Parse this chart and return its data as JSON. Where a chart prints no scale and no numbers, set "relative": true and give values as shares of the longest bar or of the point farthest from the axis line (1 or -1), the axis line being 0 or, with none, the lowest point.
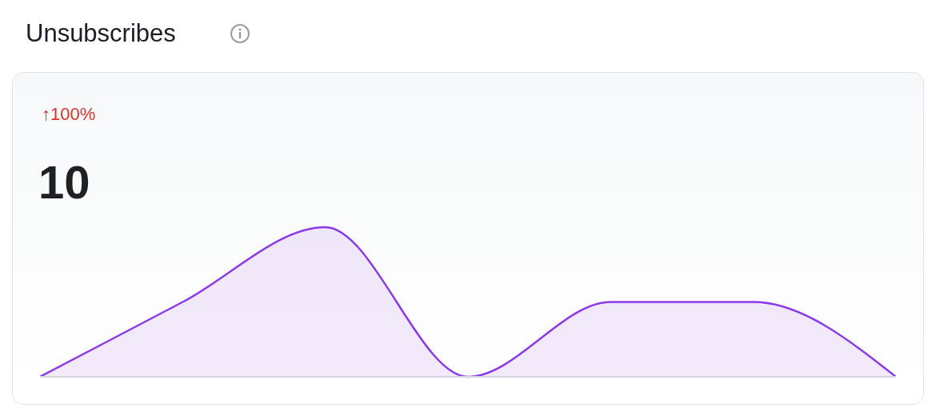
{
  "chart_data": {
    "type": "area",
    "title": "Unsubscribes",
    "annotations": [
      "↑100%",
      "10"
    ],
    "categories": [
      null,
      null,
      null,
      null,
      null,
      null,
      null
    ],
    "values": [
      0,
      0.5,
      1,
      0,
      0.5,
      0.5,
      0
    ],
    "relative": true,
    "color": "#8a3ae6"
  }
}
